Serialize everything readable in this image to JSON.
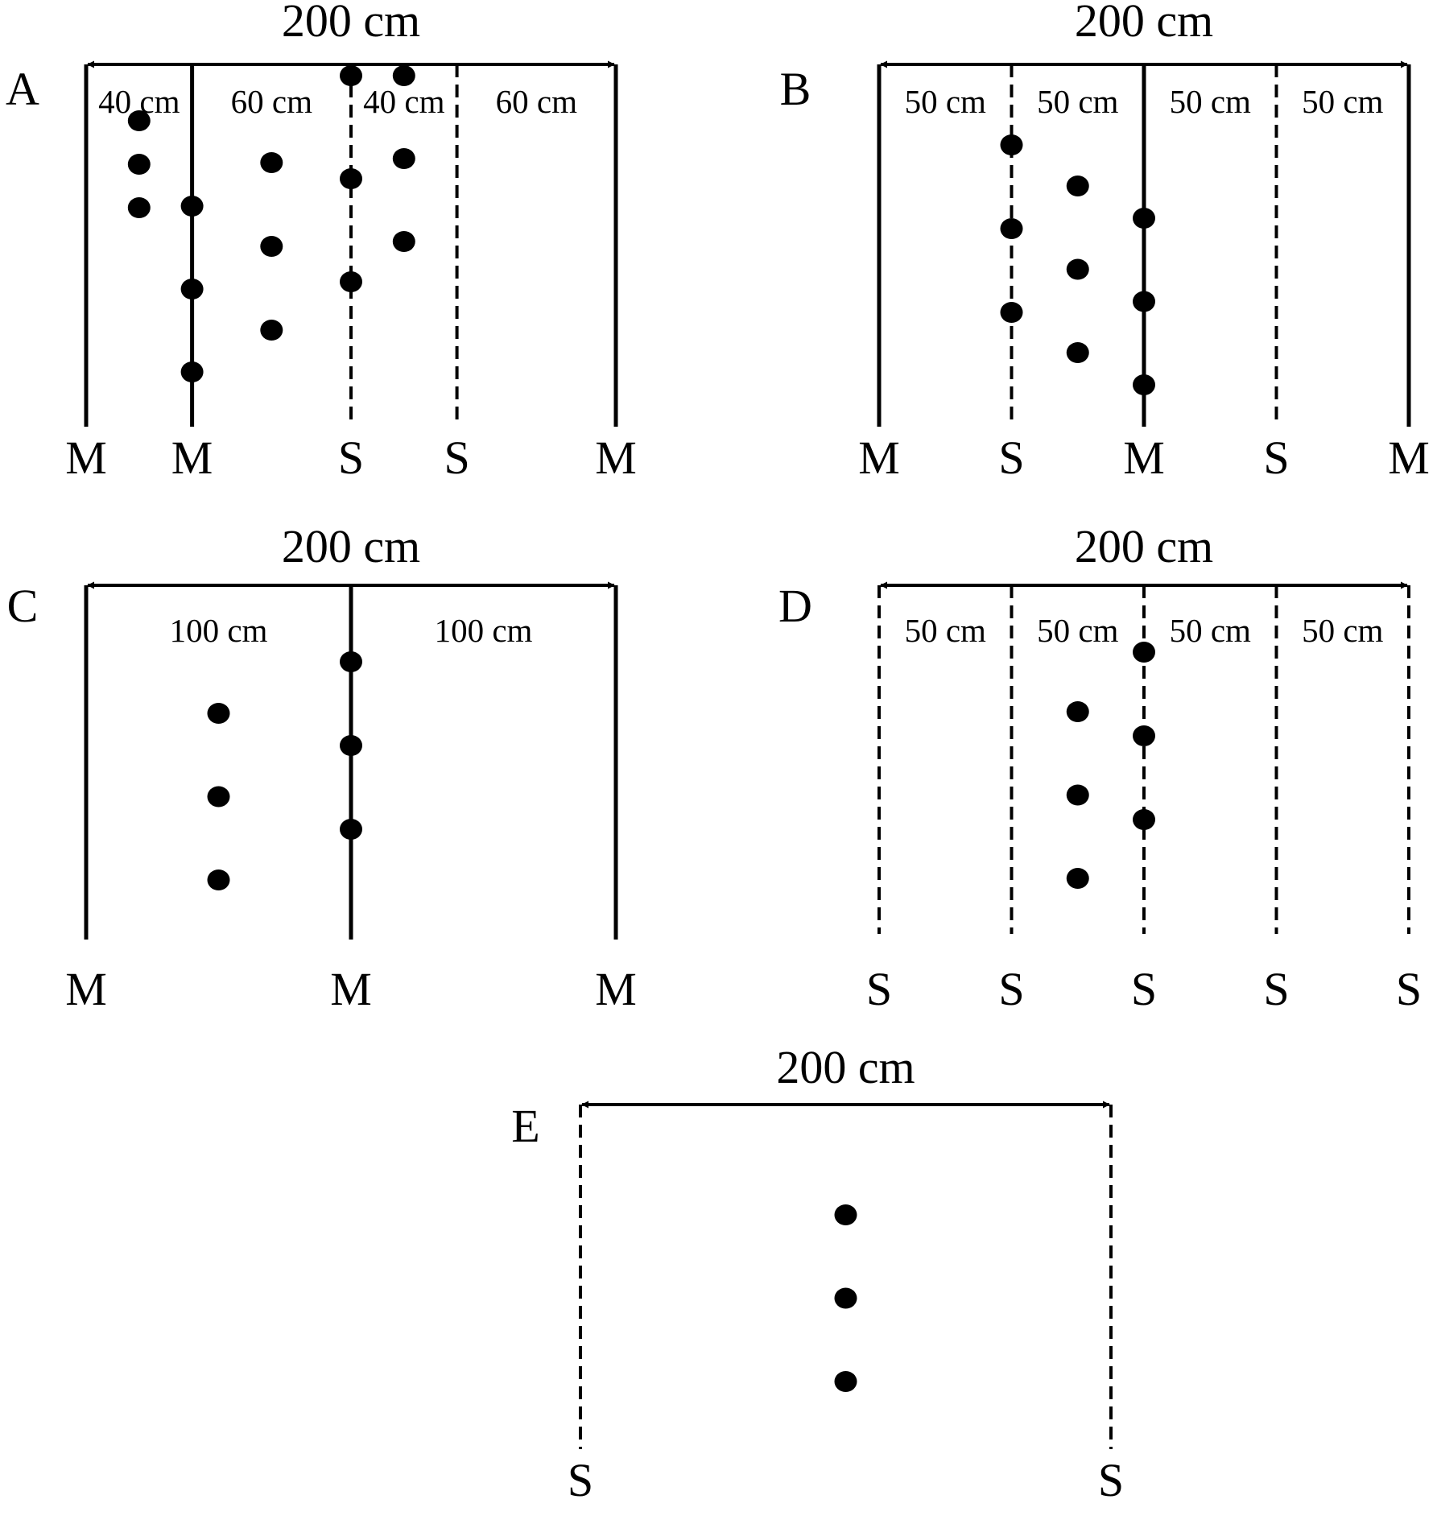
{
  "panels": [
    {
      "id": "A",
      "label": "A",
      "total_width": "200 cm",
      "rows": [
        {
          "type": "M",
          "pos_cm": 0
        },
        {
          "type": "M",
          "pos_cm": 40
        },
        {
          "type": "S",
          "pos_cm": 100
        },
        {
          "type": "S",
          "pos_cm": 140
        },
        {
          "type": "M",
          "pos_cm": 200
        }
      ],
      "spacings": [
        {
          "text": "40 cm",
          "center_cm": 20
        },
        {
          "text": "60 cm",
          "center_cm": 70
        },
        {
          "text": "40 cm",
          "center_cm": 120
        },
        {
          "text": "60 cm",
          "center_cm": 170
        }
      ],
      "plant_columns": [
        {
          "pos_cm": 20,
          "count": 3
        },
        {
          "pos_cm": 40,
          "count": 3
        },
        {
          "pos_cm": 70,
          "count": 3
        },
        {
          "pos_cm": 100,
          "count": 3
        },
        {
          "pos_cm": 120,
          "count": 3
        }
      ]
    },
    {
      "id": "B",
      "label": "B",
      "total_width": "200 cm",
      "rows": [
        {
          "type": "M",
          "pos_cm": 0
        },
        {
          "type": "S",
          "pos_cm": 50
        },
        {
          "type": "M",
          "pos_cm": 100
        },
        {
          "type": "S",
          "pos_cm": 150
        },
        {
          "type": "M",
          "pos_cm": 200
        }
      ],
      "spacings": [
        {
          "text": "50 cm",
          "center_cm": 25
        },
        {
          "text": "50 cm",
          "center_cm": 75
        },
        {
          "text": "50 cm",
          "center_cm": 125
        },
        {
          "text": "50 cm",
          "center_cm": 175
        }
      ],
      "plant_columns": [
        {
          "pos_cm": 50,
          "count": 3
        },
        {
          "pos_cm": 75,
          "count": 3
        },
        {
          "pos_cm": 100,
          "count": 3
        }
      ]
    },
    {
      "id": "C",
      "label": "C",
      "total_width": "200 cm",
      "rows": [
        {
          "type": "M",
          "pos_cm": 0
        },
        {
          "type": "M",
          "pos_cm": 100
        },
        {
          "type": "M",
          "pos_cm": 200
        }
      ],
      "spacings": [
        {
          "text": "100 cm",
          "center_cm": 50
        },
        {
          "text": "100 cm",
          "center_cm": 150
        }
      ],
      "plant_columns": [
        {
          "pos_cm": 50,
          "count": 3
        },
        {
          "pos_cm": 100,
          "count": 3
        }
      ]
    },
    {
      "id": "D",
      "label": "D",
      "total_width": "200 cm",
      "rows": [
        {
          "type": "S",
          "pos_cm": 0
        },
        {
          "type": "S",
          "pos_cm": 50
        },
        {
          "type": "S",
          "pos_cm": 100
        },
        {
          "type": "S",
          "pos_cm": 150
        },
        {
          "type": "S",
          "pos_cm": 200
        }
      ],
      "spacings": [
        {
          "text": "50 cm",
          "center_cm": 25
        },
        {
          "text": "50 cm",
          "center_cm": 75
        },
        {
          "text": "50 cm",
          "center_cm": 125
        },
        {
          "text": "50 cm",
          "center_cm": 175
        }
      ],
      "plant_columns": [
        {
          "pos_cm": 75,
          "count": 3
        },
        {
          "pos_cm": 100,
          "count": 3
        }
      ]
    },
    {
      "id": "E",
      "label": "E",
      "total_width": "200 cm",
      "rows": [
        {
          "type": "S",
          "pos_cm": 0
        },
        {
          "type": "S",
          "pos_cm": 200
        }
      ],
      "spacings": [],
      "plant_columns": [
        {
          "pos_cm": 100,
          "count": 3
        }
      ]
    }
  ]
}
